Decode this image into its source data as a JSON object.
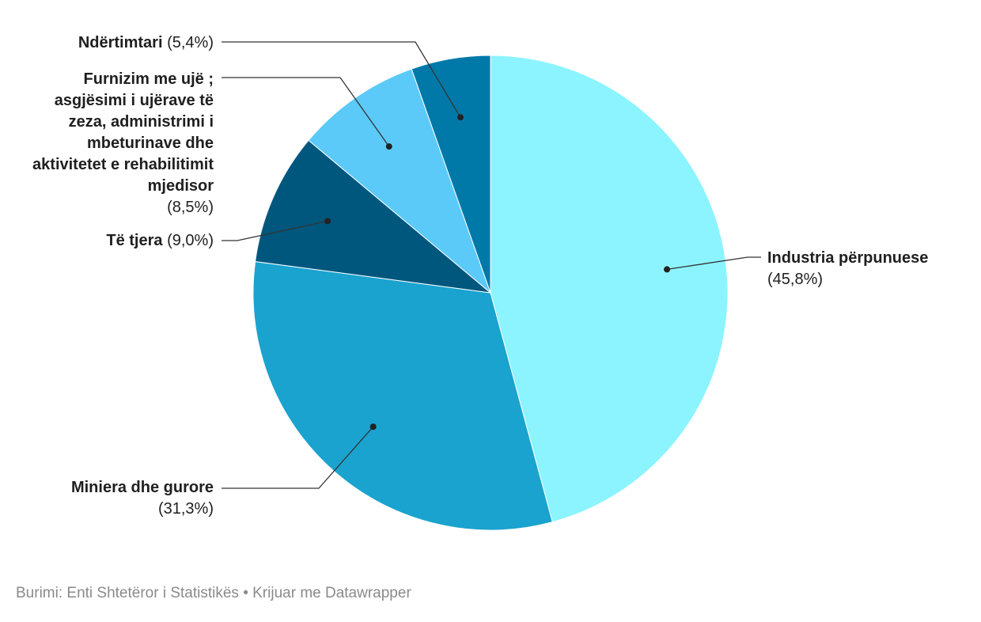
{
  "chart_data": {
    "type": "pie",
    "slices": [
      {
        "label": "Industria përpunuese",
        "value": 45.8,
        "value_label": "(45,8%)",
        "color": "#8cf4fe"
      },
      {
        "label": "Miniera dhe gurore",
        "value": 31.3,
        "value_label": "(31,3%)",
        "color": "#1aa3ce"
      },
      {
        "label": "Të tjera",
        "value": 9.0,
        "value_label": "(9,0%)",
        "color": "#00577e"
      },
      {
        "label": "Furnizim me ujë ; asgjësimi i ujërave të zeza, administrimi i mbeturinave dhe aktivitetet e rehabilitimit mjedisor",
        "value": 8.5,
        "value_label": "(8,5%)",
        "color": "#5bcaf8"
      },
      {
        "label": "Ndërtimtari",
        "value": 5.4,
        "value_label": "(5,4%)",
        "color": "#0079a8"
      }
    ],
    "source": "Burimi: Enti Shtetëror i Statistikës • Krijuar me Datawrapper"
  }
}
